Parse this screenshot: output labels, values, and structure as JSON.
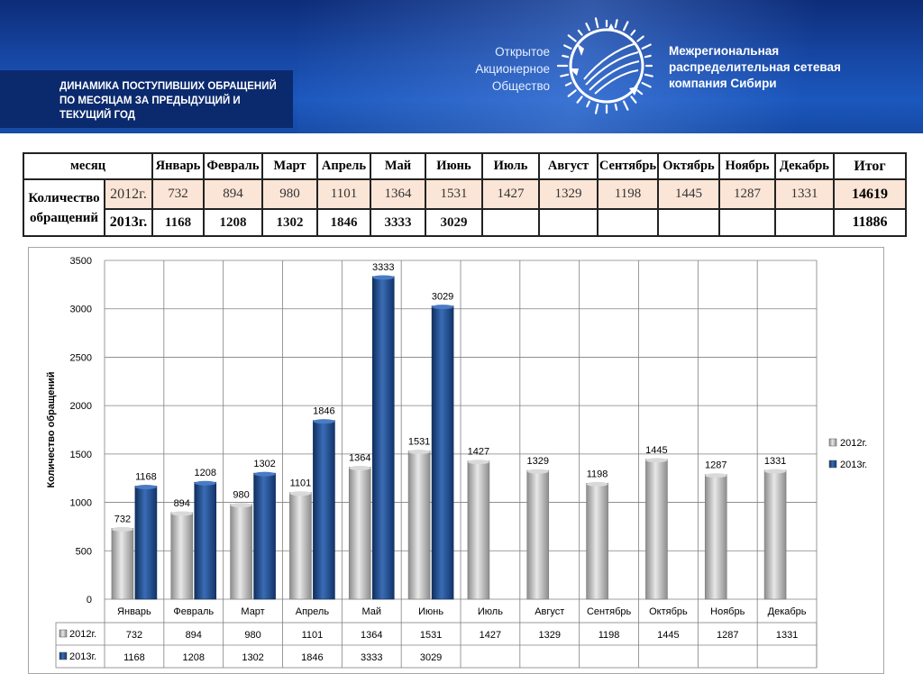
{
  "header": {
    "title": "ДИНАМИКА ПОСТУПИВШИХ ОБРАЩЕНИЙ ПО МЕСЯЦАМ ЗА ПРЕДЫДУЩИЙ И ТЕКУЩИЙ ГОД",
    "company_left": [
      "Открытое",
      "Акционерное",
      "Общество"
    ],
    "company_right": [
      "Межрегиональная",
      "распределительная сетевая",
      "компания Сибири"
    ]
  },
  "table": {
    "month_header": "месяц",
    "months": [
      "Январь",
      "Февраль",
      "Март",
      "Апрель",
      "Май",
      "Июнь",
      "Июль",
      "Август",
      "Сентябрь",
      "Октябрь",
      "Ноябрь",
      "Декабрь"
    ],
    "total_header": "Итог",
    "row_label_1": "Количество",
    "row_label_2": "обращений",
    "rows": [
      {
        "year": "2012г.",
        "values": [
          "732",
          "894",
          "980",
          "1101",
          "1364",
          "1531",
          "1427",
          "1329",
          "1198",
          "1445",
          "1287",
          "1331"
        ],
        "total": "14619"
      },
      {
        "year": "2013г.",
        "values": [
          "1168",
          "1208",
          "1302",
          "1846",
          "3333",
          "3029",
          "",
          "",
          "",
          "",
          "",
          ""
        ],
        "total": "11886"
      }
    ]
  },
  "chart_data": {
    "type": "bar",
    "categories": [
      "Январь",
      "Февраль",
      "Март",
      "Апрель",
      "Май",
      "Июнь",
      "Июль",
      "Август",
      "Сентябрь",
      "Октябрь",
      "Ноябрь",
      "Декабрь"
    ],
    "series": [
      {
        "name": "2012г.",
        "values": [
          732,
          894,
          980,
          1101,
          1364,
          1531,
          1427,
          1329,
          1198,
          1445,
          1287,
          1331
        ],
        "color": "#a6a6a6"
      },
      {
        "name": "2013г.",
        "values": [
          1168,
          1208,
          1302,
          1846,
          3333,
          3029,
          null,
          null,
          null,
          null,
          null,
          null
        ],
        "color": "#1f4e8c"
      }
    ],
    "ylabel": "Количество обращений",
    "ylim": [
      0,
      3500
    ],
    "yticks": [
      0,
      500,
      1000,
      1500,
      2000,
      2500,
      3000,
      3500
    ],
    "grid": true,
    "legend": "right",
    "data_table": true
  }
}
